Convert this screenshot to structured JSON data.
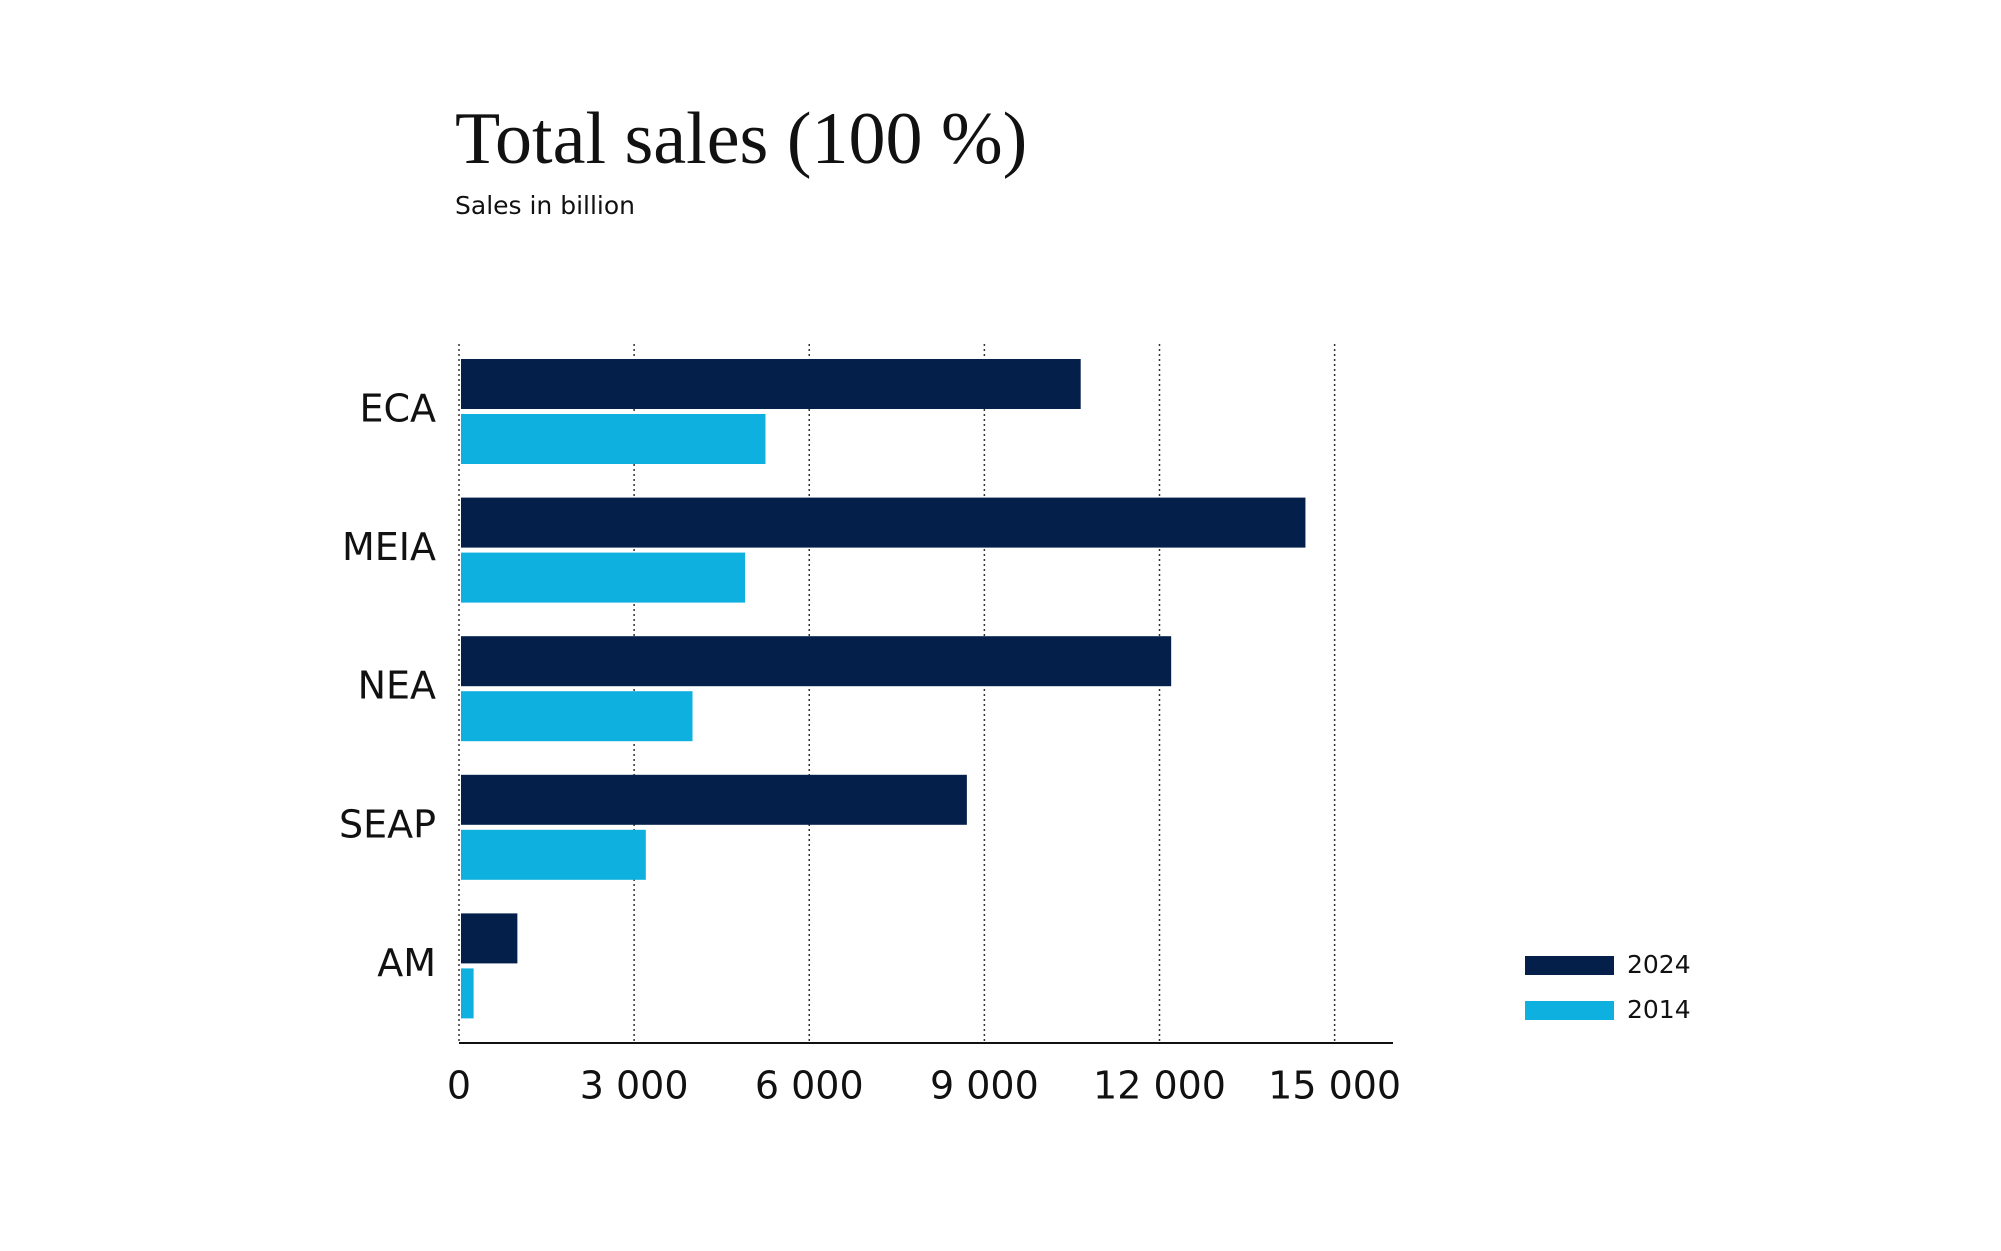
{
  "chart_data": {
    "type": "bar",
    "orientation": "horizontal",
    "title": "Total sales (100 %)",
    "subtitle": "Sales in billion",
    "categories": [
      "ECA",
      "MEIA",
      "NEA",
      "SEAP",
      "AM"
    ],
    "series": [
      {
        "name": "2024",
        "color": "#031f4a",
        "values": [
          10650,
          14500,
          12200,
          8700,
          1000
        ]
      },
      {
        "name": "2014",
        "color": "#0eb0e0",
        "values": [
          5250,
          4900,
          4000,
          3200,
          250
        ]
      }
    ],
    "xlim": [
      0,
      16000
    ],
    "xticks": [
      0,
      {
        "value": 3000,
        "label": "3 000"
      },
      {
        "value": 6000,
        "label": "6 000"
      },
      {
        "value": 9000,
        "label": "9 000"
      },
      {
        "value": 12000,
        "label": "12 000"
      },
      {
        "value": 15000,
        "label": "15 000"
      }
    ],
    "grid": true,
    "legend": "bottom-right"
  }
}
